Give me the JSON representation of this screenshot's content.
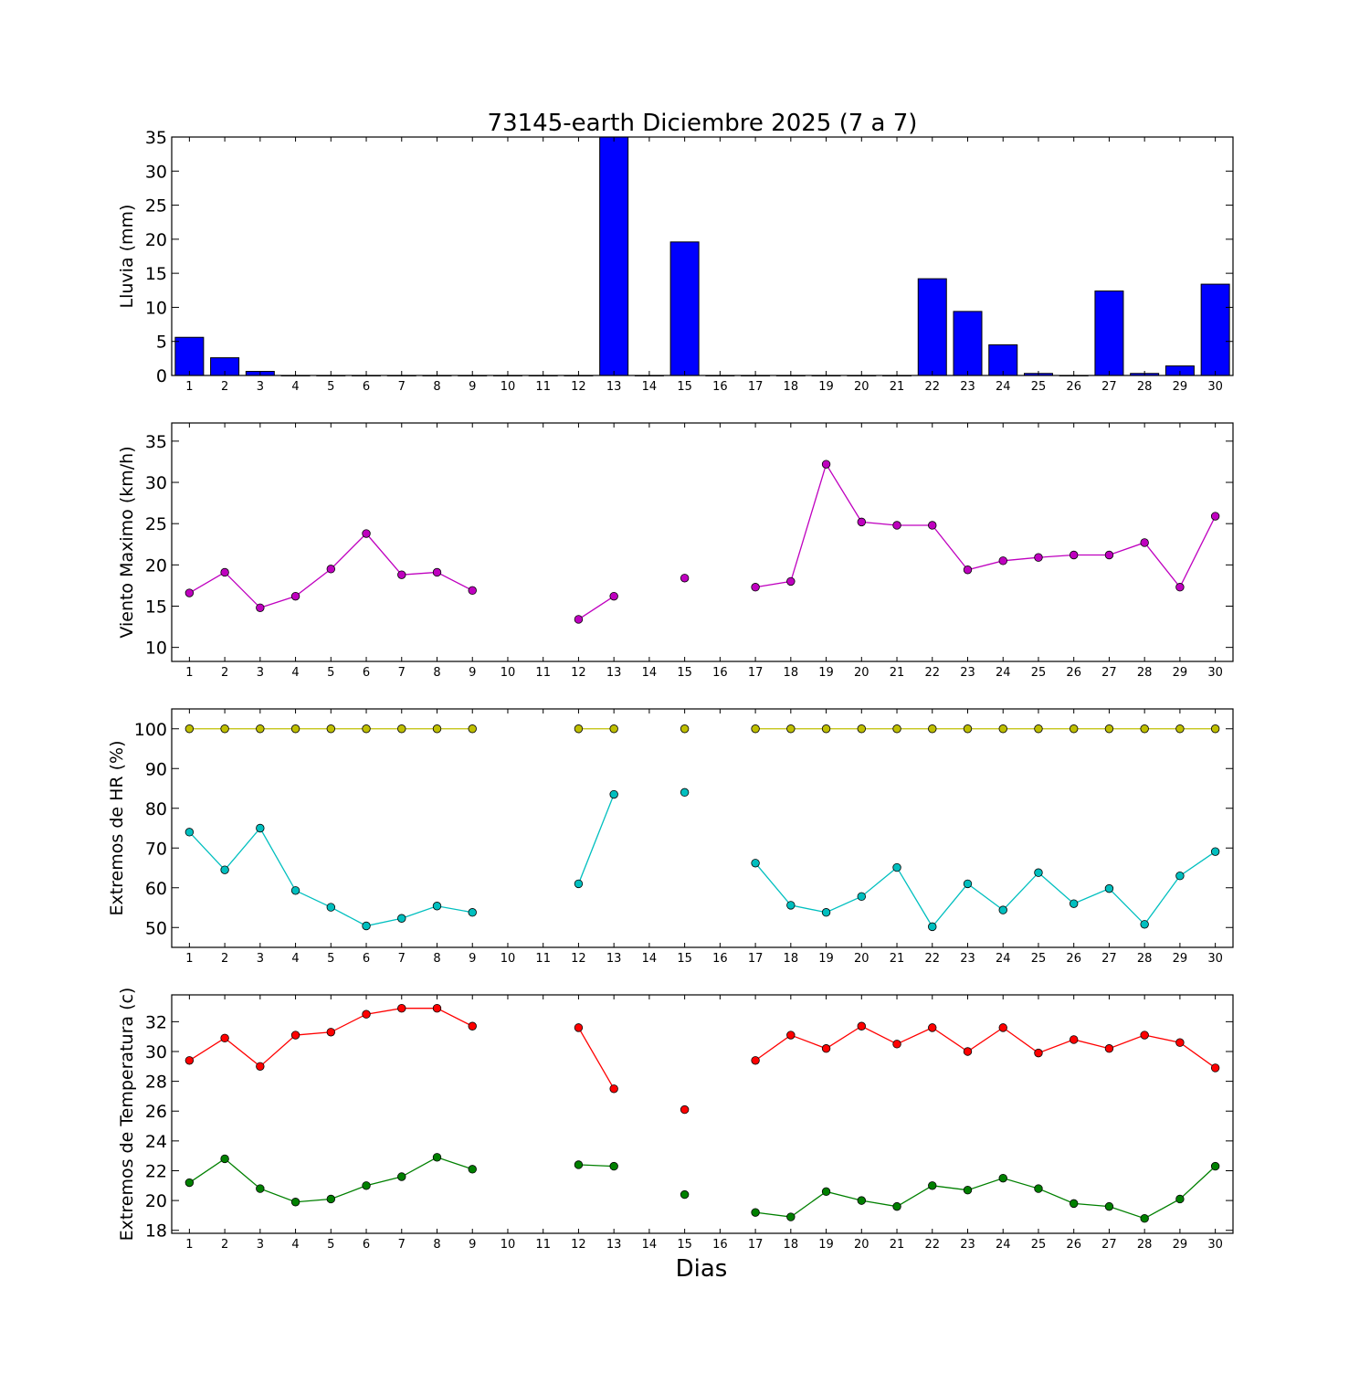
{
  "title": "73145-earth Diciembre 2025  (7 a 7)",
  "xlabel": "Dias",
  "chart_data": [
    {
      "type": "bar",
      "ylabel": "Lluvia (mm)",
      "ylim": [
        0,
        35
      ],
      "yticks": [
        0,
        5,
        10,
        15,
        20,
        25,
        30,
        35
      ],
      "x": [
        1,
        2,
        3,
        4,
        5,
        6,
        7,
        8,
        9,
        10,
        11,
        12,
        13,
        14,
        15,
        16,
        17,
        18,
        19,
        20,
        21,
        22,
        23,
        24,
        25,
        26,
        27,
        28,
        29,
        30
      ],
      "xlim": [
        0.5,
        30.5
      ],
      "series": [
        {
          "color": "#0000ff",
          "values": [
            5.6,
            2.6,
            0.6,
            0,
            0,
            0,
            0,
            0,
            0,
            0,
            0,
            0,
            35,
            0,
            19.6,
            0,
            0,
            0,
            0,
            0,
            0,
            14.2,
            9.4,
            4.5,
            0.3,
            0,
            12.4,
            0.3,
            1.4,
            13.4
          ]
        }
      ]
    },
    {
      "type": "line",
      "ylabel": "Viento Maximo (km/h)",
      "ylim": [
        8.3,
        37.2
      ],
      "yticks": [
        10,
        15,
        20,
        25,
        30,
        35
      ],
      "x": [
        1,
        2,
        3,
        4,
        5,
        6,
        7,
        8,
        9,
        10,
        11,
        12,
        13,
        14,
        15,
        16,
        17,
        18,
        19,
        20,
        21,
        22,
        23,
        24,
        25,
        26,
        27,
        28,
        29,
        30
      ],
      "xlim": [
        0.5,
        30.5
      ],
      "series": [
        {
          "color": "#bf00bf",
          "values": [
            16.6,
            19.1,
            14.8,
            16.2,
            19.5,
            23.8,
            18.8,
            19.1,
            16.9,
            null,
            null,
            13.4,
            16.2,
            null,
            18.4,
            null,
            17.3,
            18.0,
            32.2,
            25.2,
            24.8,
            24.8,
            19.4,
            20.5,
            20.9,
            21.2,
            21.2,
            22.7,
            17.3,
            25.9
          ]
        }
      ]
    },
    {
      "type": "line",
      "ylabel": "Extremos de HR (%)",
      "ylim": [
        45,
        105
      ],
      "yticks": [
        50,
        60,
        70,
        80,
        90,
        100
      ],
      "x": [
        1,
        2,
        3,
        4,
        5,
        6,
        7,
        8,
        9,
        10,
        11,
        12,
        13,
        14,
        15,
        16,
        17,
        18,
        19,
        20,
        21,
        22,
        23,
        24,
        25,
        26,
        27,
        28,
        29,
        30
      ],
      "xlim": [
        0.5,
        30.5
      ],
      "series": [
        {
          "color": "#bfbf00",
          "values": [
            100,
            100,
            100,
            100,
            100,
            100,
            100,
            100,
            100,
            null,
            null,
            100,
            100,
            null,
            100,
            null,
            100,
            100,
            100,
            100,
            100,
            100,
            100,
            100,
            100,
            100,
            100,
            100,
            100,
            100
          ]
        },
        {
          "color": "#00bfbf",
          "values": [
            74,
            64.5,
            75,
            59.3,
            55.1,
            50.4,
            52.3,
            55.4,
            53.8,
            null,
            null,
            61,
            83.5,
            null,
            84,
            null,
            66.2,
            55.6,
            53.8,
            57.8,
            65.1,
            50.2,
            61,
            54.4,
            63.8,
            56,
            59.8,
            50.8,
            63,
            69.1
          ]
        }
      ]
    },
    {
      "type": "line",
      "ylabel": "Extremos de Temperatura (c)",
      "ylim": [
        17.8,
        33.8
      ],
      "yticks": [
        18,
        20,
        22,
        24,
        26,
        28,
        30,
        32
      ],
      "x": [
        1,
        2,
        3,
        4,
        5,
        6,
        7,
        8,
        9,
        10,
        11,
        12,
        13,
        14,
        15,
        16,
        17,
        18,
        19,
        20,
        21,
        22,
        23,
        24,
        25,
        26,
        27,
        28,
        29,
        30
      ],
      "xlim": [
        0.5,
        30.5
      ],
      "series": [
        {
          "color": "#ff0000",
          "values": [
            29.4,
            30.9,
            29,
            31.1,
            31.3,
            32.5,
            32.9,
            32.9,
            31.7,
            null,
            null,
            31.6,
            27.5,
            null,
            26.1,
            null,
            29.4,
            31.1,
            30.2,
            31.7,
            30.5,
            31.6,
            30,
            31.6,
            29.9,
            30.8,
            30.2,
            31.1,
            30.6,
            28.9
          ]
        },
        {
          "color": "#008000",
          "values": [
            21.2,
            22.8,
            20.8,
            19.9,
            20.1,
            21,
            21.6,
            22.9,
            22.1,
            null,
            null,
            22.4,
            22.3,
            null,
            20.4,
            null,
            19.2,
            18.9,
            20.6,
            20,
            19.6,
            21,
            20.7,
            21.5,
            20.8,
            19.8,
            19.6,
            18.8,
            20.1,
            22.3
          ]
        }
      ]
    }
  ]
}
